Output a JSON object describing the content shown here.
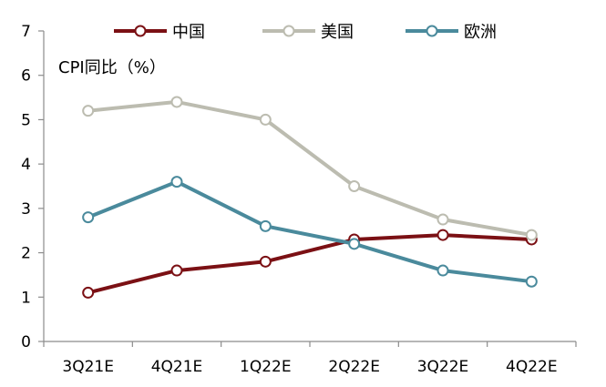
{
  "chart_data": {
    "type": "line",
    "title": "",
    "xlabel": "",
    "ylabel": "CPI同比（%）",
    "categories": [
      "3Q21E",
      "4Q21E",
      "1Q22E",
      "2Q22E",
      "3Q22E",
      "4Q22E"
    ],
    "ylim": [
      0,
      7
    ],
    "yticks": [
      "0",
      "1",
      "2",
      "3",
      "4",
      "5",
      "6",
      "7"
    ],
    "grid": false,
    "legend_position": "top",
    "series": [
      {
        "name": "中国",
        "color": "#7b1014",
        "values": [
          1.1,
          1.6,
          1.8,
          2.3,
          2.4,
          2.3
        ]
      },
      {
        "name": "美国",
        "color": "#bcbcb0",
        "values": [
          5.2,
          5.4,
          5.0,
          3.5,
          2.75,
          2.4
        ]
      },
      {
        "name": "欧洲",
        "color": "#4a8a9c",
        "values": [
          2.8,
          3.6,
          2.6,
          2.2,
          1.6,
          1.35
        ]
      }
    ]
  }
}
